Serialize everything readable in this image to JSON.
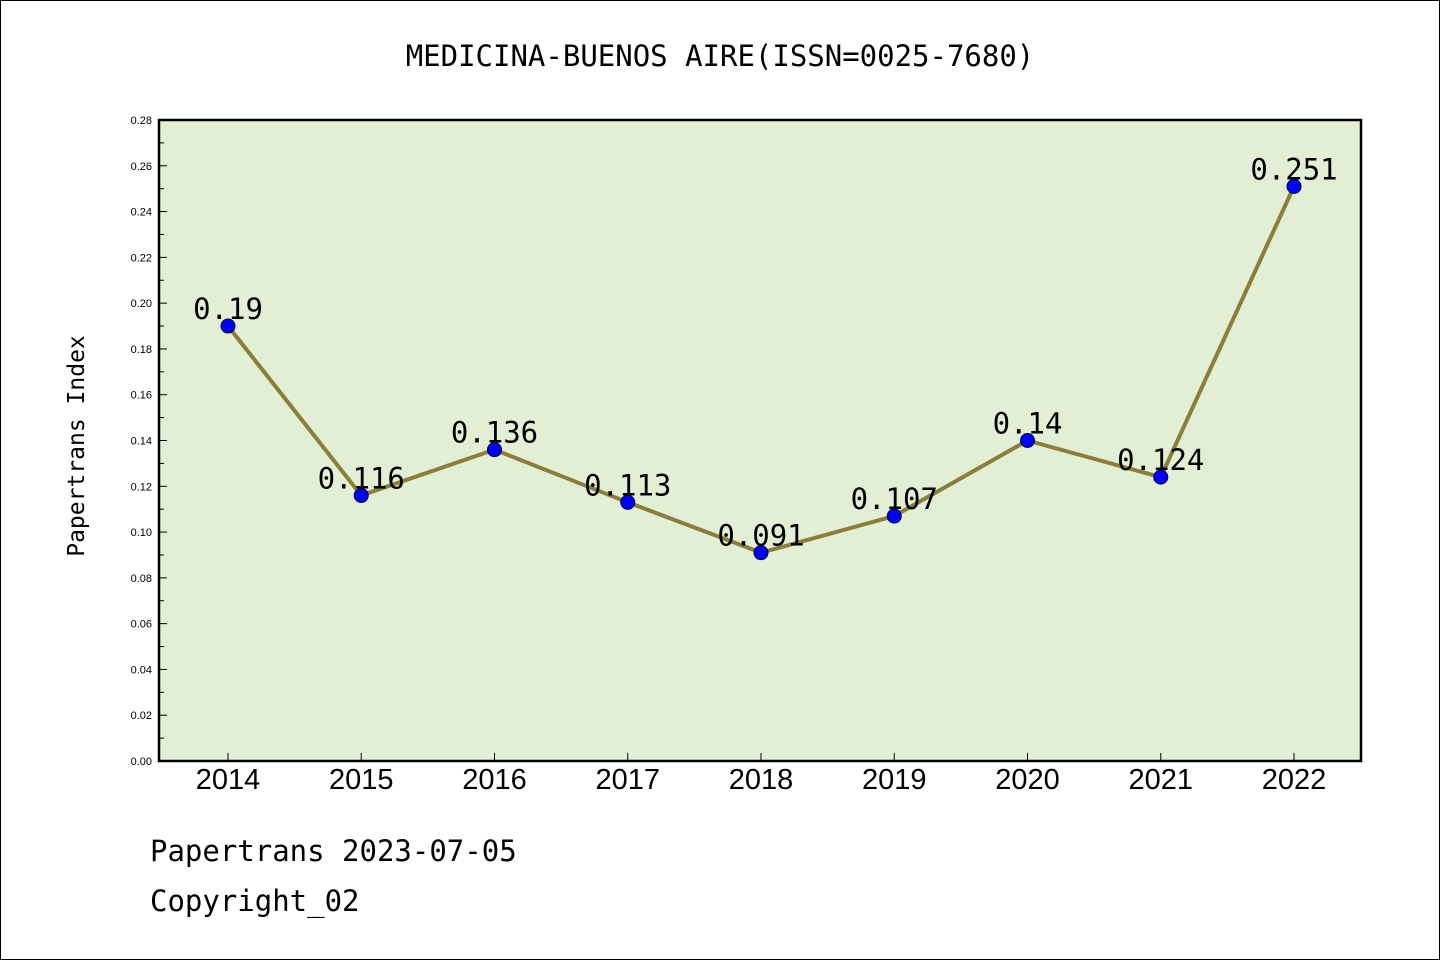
{
  "chart_data": {
    "type": "line",
    "title": "MEDICINA-BUENOS AIRE(ISSN=0025-7680)",
    "xlabel": "",
    "ylabel": "Papertrans Index",
    "categories": [
      "2014",
      "2015",
      "2016",
      "2017",
      "2018",
      "2019",
      "2020",
      "2021",
      "2022"
    ],
    "series": [
      {
        "values": [
          0.19,
          0.116,
          0.136,
          0.113,
          0.091,
          0.107,
          0.14,
          0.124,
          0.251
        ],
        "labels": [
          "0.19",
          "0.116",
          "0.136",
          "0.113",
          "0.091",
          "0.107",
          "0.14",
          "0.124",
          "0.251"
        ]
      }
    ],
    "ylim": [
      0,
      0.28
    ],
    "yticks": [
      "0.00",
      "0.02",
      "0.04",
      "0.06",
      "0.08",
      "0.10",
      "0.12",
      "0.14",
      "0.16",
      "0.18",
      "0.20",
      "0.22",
      "0.24",
      "0.26",
      "0.28"
    ],
    "grid": false,
    "legend": "none",
    "colors": {
      "plot_background": "#e2efd5",
      "line": "#8b7d3a",
      "marker": "#0000ff"
    }
  },
  "footer": {
    "date_line": "Papertrans 2023-07-05",
    "copyright": "Copyright_02"
  }
}
